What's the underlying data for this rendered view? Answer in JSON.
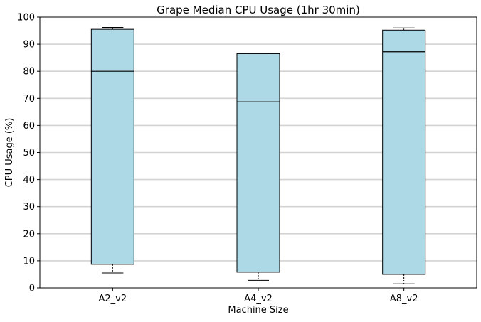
{
  "chart_data": {
    "type": "box",
    "title": "Grape Median CPU Usage (1hr 30min)",
    "xlabel": "Machine Size",
    "ylabel": "CPU Usage (%)",
    "ylim": [
      0,
      100
    ],
    "yticks": [
      0,
      10,
      20,
      30,
      40,
      50,
      60,
      70,
      80,
      90,
      100
    ],
    "grid": "horizontal",
    "categories": [
      "A2_v2",
      "A4_v2",
      "A8_v2"
    ],
    "boxes": [
      {
        "category": "A2_v2",
        "whisker_low": 5.5,
        "q1": 8.7,
        "median": 80.0,
        "q3": 95.5,
        "whisker_high": 96.2
      },
      {
        "category": "A4_v2",
        "whisker_low": 2.8,
        "q1": 5.8,
        "median": 68.7,
        "q3": 86.5,
        "whisker_high": 86.5
      },
      {
        "category": "A8_v2",
        "whisker_low": 1.5,
        "q1": 5.0,
        "median": 87.2,
        "q3": 95.2,
        "whisker_high": 96.0
      }
    ],
    "colors": {
      "box_fill": "#add8e6",
      "box_edge": "#000000",
      "grid": "#d3d3d3"
    }
  }
}
